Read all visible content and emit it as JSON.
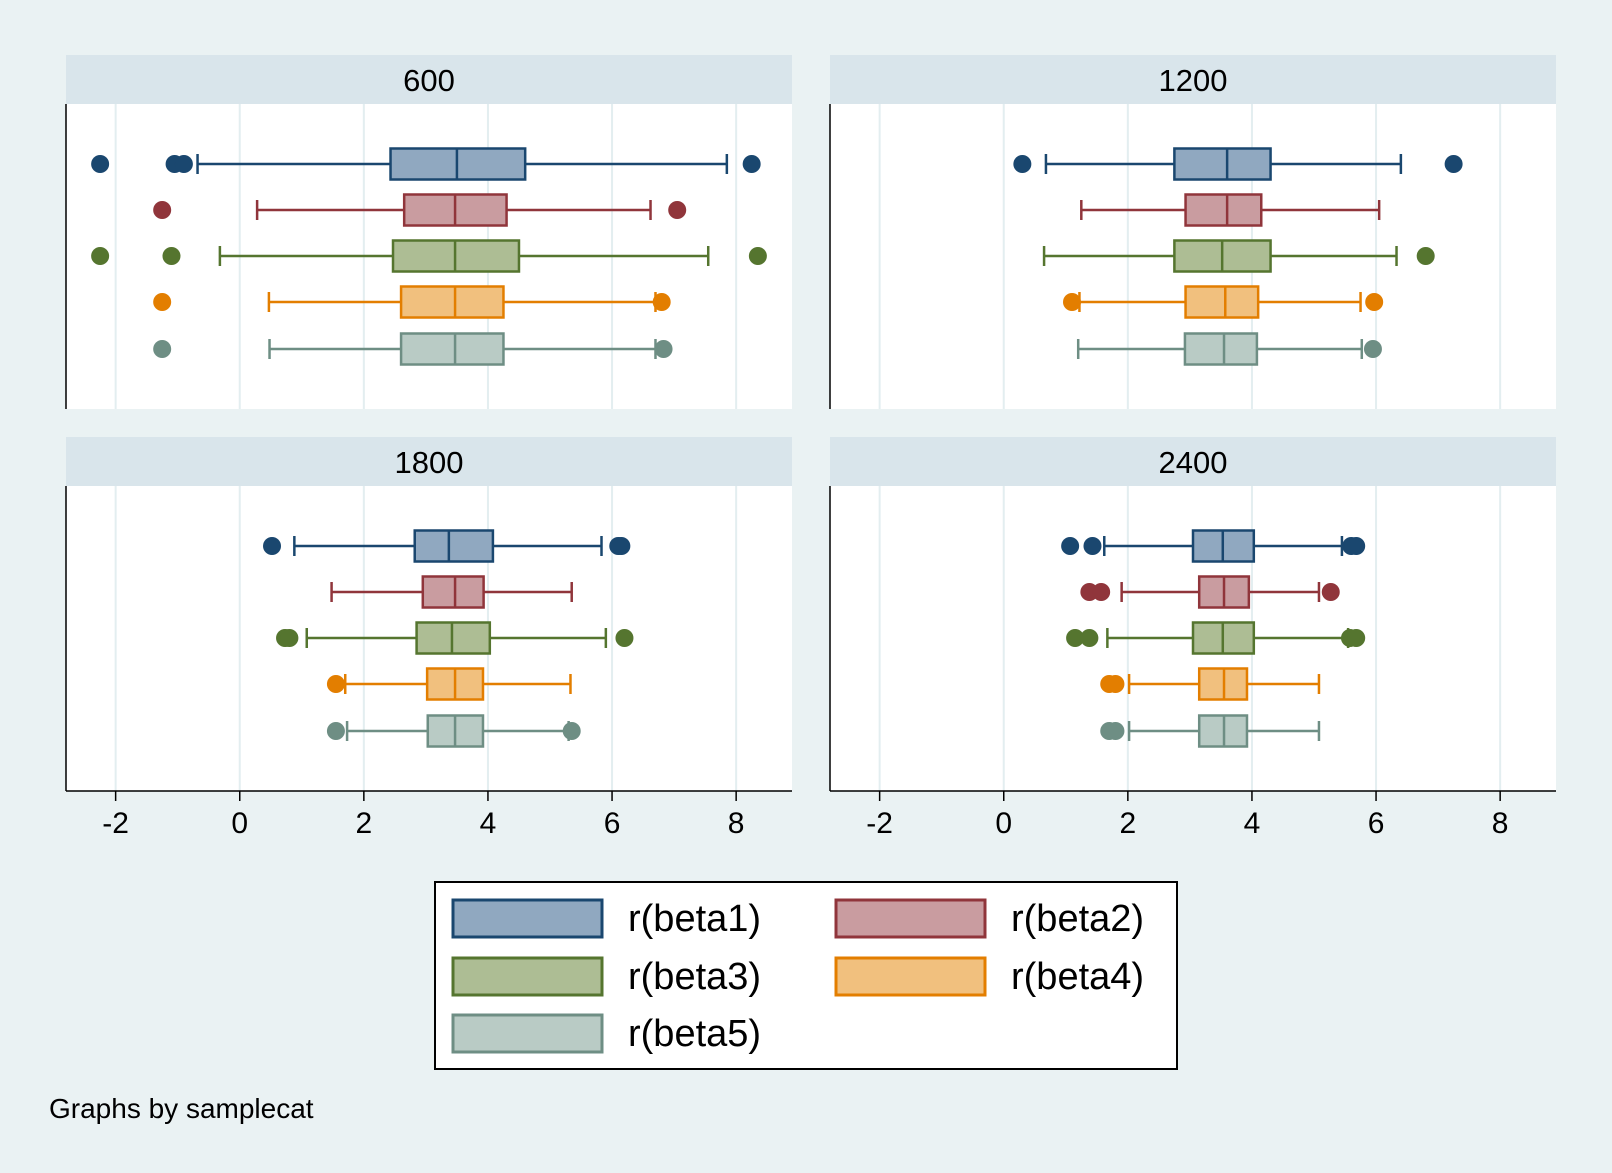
{
  "chart_data": {
    "type": "box",
    "orientation": "horizontal",
    "by_note": "Graphs by samplecat",
    "xlim": [
      -2.8,
      8.9
    ],
    "xticks": [
      -2,
      0,
      2,
      4,
      6,
      8
    ],
    "xtick_labels": [
      "-2",
      "0",
      "2",
      "4",
      "6",
      "8"
    ],
    "grid": true,
    "colors": {
      "background": "#eaf2f3",
      "panel_header": "#d9e5eb",
      "plot_bg": "#ffffff",
      "grid": "#e3eef0"
    },
    "series": [
      {
        "name": "r(beta1)",
        "stroke": "#1a476f",
        "fill": "#90a8c0"
      },
      {
        "name": "r(beta2)",
        "stroke": "#90353b",
        "fill": "#c99ca0"
      },
      {
        "name": "r(beta3)",
        "stroke": "#55752f",
        "fill": "#adbd94"
      },
      {
        "name": "r(beta4)",
        "stroke": "#e37e00",
        "fill": "#f1c07e"
      },
      {
        "name": "r(beta5)",
        "stroke": "#6e8e84",
        "fill": "#b9cbc5"
      }
    ],
    "panels": [
      {
        "title": "600",
        "boxes": [
          {
            "q1": 2.43,
            "median": 3.5,
            "q3": 4.6,
            "whisker_low": -0.68,
            "whisker_high": 7.85,
            "outliers": [
              -2.25,
              -1.05,
              -0.9,
              8.25
            ]
          },
          {
            "q1": 2.65,
            "median": 3.47,
            "q3": 4.3,
            "whisker_low": 0.28,
            "whisker_high": 6.62,
            "outliers": [
              -1.25,
              7.05
            ]
          },
          {
            "q1": 2.47,
            "median": 3.47,
            "q3": 4.5,
            "whisker_low": -0.32,
            "whisker_high": 7.55,
            "outliers": [
              -2.25,
              -1.1,
              8.35
            ]
          },
          {
            "q1": 2.6,
            "median": 3.47,
            "q3": 4.25,
            "whisker_low": 0.47,
            "whisker_high": 6.7,
            "outliers": [
              -1.25,
              6.8
            ]
          },
          {
            "q1": 2.6,
            "median": 3.47,
            "q3": 4.25,
            "whisker_low": 0.48,
            "whisker_high": 6.7,
            "outliers": [
              -1.25,
              6.83
            ]
          }
        ]
      },
      {
        "title": "1200",
        "boxes": [
          {
            "q1": 2.75,
            "median": 3.6,
            "q3": 4.3,
            "whisker_low": 0.68,
            "whisker_high": 6.4,
            "outliers": [
              0.3,
              7.25
            ]
          },
          {
            "q1": 2.93,
            "median": 3.6,
            "q3": 4.15,
            "whisker_low": 1.25,
            "whisker_high": 6.05,
            "outliers": []
          },
          {
            "q1": 2.75,
            "median": 3.52,
            "q3": 4.3,
            "whisker_low": 0.65,
            "whisker_high": 6.33,
            "outliers": [
              6.8
            ]
          },
          {
            "q1": 2.93,
            "median": 3.57,
            "q3": 4.1,
            "whisker_low": 1.22,
            "whisker_high": 5.75,
            "outliers": [
              1.1,
              5.97
            ]
          },
          {
            "q1": 2.92,
            "median": 3.55,
            "q3": 4.08,
            "whisker_low": 1.2,
            "whisker_high": 5.77,
            "outliers": [
              5.95
            ]
          }
        ]
      },
      {
        "title": "1800",
        "boxes": [
          {
            "q1": 2.82,
            "median": 3.37,
            "q3": 4.08,
            "whisker_low": 0.88,
            "whisker_high": 5.83,
            "outliers": [
              0.52,
              6.1,
              6.15
            ]
          },
          {
            "q1": 2.95,
            "median": 3.47,
            "q3": 3.93,
            "whisker_low": 1.48,
            "whisker_high": 5.35,
            "outliers": []
          },
          {
            "q1": 2.85,
            "median": 3.42,
            "q3": 4.03,
            "whisker_low": 1.08,
            "whisker_high": 5.9,
            "outliers": [
              0.73,
              0.8,
              6.2
            ]
          },
          {
            "q1": 3.02,
            "median": 3.47,
            "q3": 3.92,
            "whisker_low": 1.7,
            "whisker_high": 5.33,
            "outliers": [
              1.55
            ]
          },
          {
            "q1": 3.03,
            "median": 3.47,
            "q3": 3.92,
            "whisker_low": 1.73,
            "whisker_high": 5.3,
            "outliers": [
              1.55,
              5.35
            ]
          }
        ]
      },
      {
        "title": "2400",
        "boxes": [
          {
            "q1": 3.05,
            "median": 3.53,
            "q3": 4.03,
            "whisker_low": 1.62,
            "whisker_high": 5.45,
            "outliers": [
              1.07,
              1.43,
              5.6,
              5.68
            ]
          },
          {
            "q1": 3.15,
            "median": 3.55,
            "q3": 3.95,
            "whisker_low": 1.9,
            "whisker_high": 5.08,
            "outliers": [
              1.38,
              1.57,
              5.27
            ]
          },
          {
            "q1": 3.05,
            "median": 3.53,
            "q3": 4.03,
            "whisker_low": 1.67,
            "whisker_high": 5.55,
            "outliers": [
              1.15,
              1.38,
              5.58,
              5.68
            ]
          },
          {
            "q1": 3.15,
            "median": 3.55,
            "q3": 3.92,
            "whisker_low": 2.02,
            "whisker_high": 5.08,
            "outliers": [
              1.7,
              1.8
            ]
          },
          {
            "q1": 3.15,
            "median": 3.55,
            "q3": 3.92,
            "whisker_low": 2.02,
            "whisker_high": 5.08,
            "outliers": [
              1.7,
              1.8
            ]
          }
        ]
      }
    ]
  }
}
